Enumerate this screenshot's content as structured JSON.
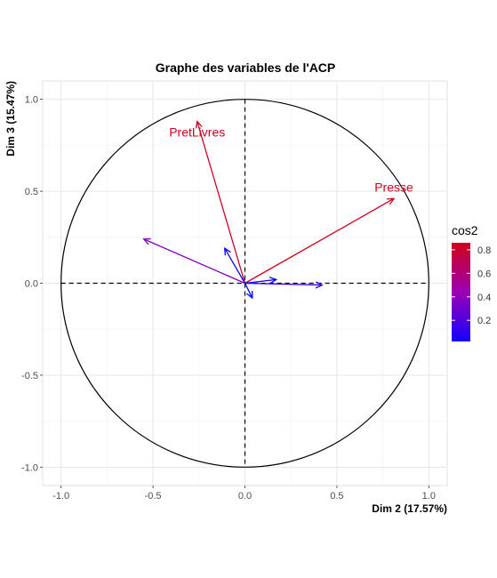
{
  "chart_data": {
    "type": "scatter",
    "title": "Graphe des variables de l'ACP",
    "xlabel": "Dim 2 (17.57%)",
    "ylabel": "Dim 3 (15.47%)",
    "xlim": [
      -1.0,
      1.0
    ],
    "ylim": [
      -1.0,
      1.0
    ],
    "x_ticks": [
      "-1.0",
      "-0.5",
      "0.0",
      "0.5",
      "1.0"
    ],
    "y_ticks": [
      "1.0",
      "0.5",
      "0.0",
      "-0.5",
      "-1.0"
    ],
    "grid": true,
    "legend": {
      "title": "cos2",
      "position": "right",
      "ticks": [
        "0.8",
        "0.6",
        "0.4",
        "0.2"
      ],
      "tick_values": [
        0.8,
        0.6,
        0.4,
        0.2
      ],
      "range": [
        0.02,
        0.86
      ],
      "colors": [
        "#0000ff",
        "#9b00b4",
        "#d0001a"
      ]
    },
    "series": [
      {
        "name": "PretLivres",
        "x": -0.26,
        "y": 0.88,
        "cos2": 0.84
      },
      {
        "name": "Presse",
        "x": 0.81,
        "y": 0.46,
        "cos2": 0.86
      },
      {
        "x": -0.55,
        "y": 0.24,
        "cos2": 0.37
      },
      {
        "x": -0.11,
        "y": 0.19,
        "cos2": 0.05
      },
      {
        "x": 0.42,
        "y": -0.01,
        "cos2": 0.18
      },
      {
        "x": 0.17,
        "y": 0.02,
        "cos2": 0.03
      },
      {
        "x": 0.04,
        "y": -0.08,
        "cos2": 0.01
      }
    ]
  }
}
